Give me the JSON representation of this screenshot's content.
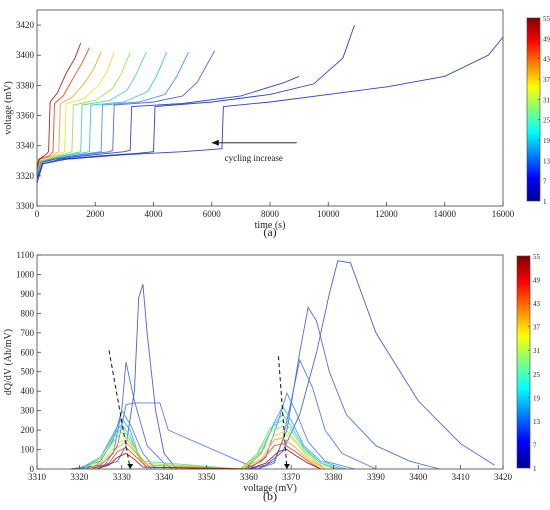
{
  "chart_data": [
    {
      "type": "line",
      "panel_label": "(a)",
      "xlabel": "time (s)",
      "ylabel": "voltage (mV)",
      "xlim": [
        0,
        16000
      ],
      "ylim": [
        3300,
        3430
      ],
      "xticks": [
        0,
        2000,
        4000,
        6000,
        8000,
        10000,
        12000,
        14000,
        16000
      ],
      "yticks": [
        3300,
        3320,
        3340,
        3360,
        3380,
        3400,
        3420
      ],
      "grid": false,
      "annotation": {
        "text": "cycling increase",
        "arrow": "left",
        "x": 6000,
        "y": 3330
      },
      "colorbar": {
        "ticks": [
          1,
          7,
          13,
          19,
          25,
          31,
          37,
          43,
          49,
          55
        ],
        "range": [
          1,
          55
        ]
      },
      "series": [
        {
          "cycle": 1,
          "color": "#1a2fb8",
          "x": [
            0,
            200,
            1000,
            3000,
            5000,
            6350,
            6400,
            8000,
            10000,
            12000,
            14000,
            15500,
            16000
          ],
          "y": [
            3315,
            3328,
            3331,
            3334,
            3336,
            3338,
            3366,
            3369,
            3374,
            3379,
            3386,
            3400,
            3412
          ]
        },
        {
          "cycle": 1,
          "color": "#1a2fb8",
          "x": [
            0,
            200,
            800,
            2000,
            3500,
            4000,
            4050,
            6000,
            8000,
            9500,
            10500,
            10900
          ],
          "y": [
            3318,
            3328,
            3331,
            3333,
            3335,
            3336,
            3366,
            3369,
            3374,
            3381,
            3398,
            3420
          ]
        },
        {
          "cycle": 4,
          "color": "#2035c8",
          "x": [
            0,
            200,
            600,
            1500,
            3000,
            3200,
            3250,
            5000,
            7000,
            8500,
            9000
          ],
          "y": [
            3318,
            3329,
            3331,
            3333,
            3336,
            3337,
            3366,
            3368,
            3373,
            3382,
            3386
          ]
        },
        {
          "cycle": 8,
          "color": "#3d5ae0",
          "x": [
            0,
            150,
            500,
            1200,
            2500,
            2600,
            2650,
            4000,
            5000,
            5500,
            6100
          ],
          "y": [
            3320,
            3329,
            3331,
            3333,
            3336,
            3337,
            3367,
            3369,
            3373,
            3382,
            3403
          ]
        },
        {
          "cycle": 12,
          "color": "#2b8ee8",
          "x": [
            0,
            150,
            500,
            1100,
            2200,
            2250,
            3500,
            4400,
            4800,
            5200
          ],
          "y": [
            3320,
            3330,
            3331,
            3333,
            3336,
            3367,
            3369,
            3374,
            3386,
            3402
          ]
        },
        {
          "cycle": 18,
          "color": "#28c0d8",
          "x": [
            0,
            120,
            400,
            900,
            1800,
            1850,
            3000,
            3800,
            4100,
            4450
          ],
          "y": [
            3321,
            3330,
            3331,
            3333,
            3336,
            3367,
            3369,
            3376,
            3386,
            3402
          ]
        },
        {
          "cycle": 25,
          "color": "#40d0a0",
          "x": [
            0,
            120,
            400,
            800,
            1500,
            1550,
            2500,
            3100,
            3400,
            3750
          ],
          "y": [
            3322,
            3330,
            3331,
            3333,
            3336,
            3367,
            3370,
            3377,
            3387,
            3402
          ]
        },
        {
          "cycle": 31,
          "color": "#90e040",
          "x": [
            0,
            100,
            300,
            700,
            1200,
            1250,
            2000,
            2600,
            2900,
            3200
          ],
          "y": [
            3322,
            3330,
            3331,
            3333,
            3336,
            3367,
            3370,
            3378,
            3388,
            3402
          ]
        },
        {
          "cycle": 37,
          "color": "#e8e020",
          "x": [
            0,
            100,
            300,
            600,
            950,
            1000,
            1600,
            2100,
            2400,
            2650
          ],
          "y": [
            3323,
            3331,
            3332,
            3333,
            3336,
            3368,
            3371,
            3380,
            3389,
            3402
          ]
        },
        {
          "cycle": 43,
          "color": "#f5a020",
          "x": [
            0,
            100,
            250,
            500,
            750,
            800,
            1200,
            1650,
            1950,
            2200
          ],
          "y": [
            3323,
            3331,
            3332,
            3333,
            3336,
            3368,
            3372,
            3382,
            3391,
            3402
          ]
        },
        {
          "cycle": 49,
          "color": "#ee3a1a",
          "x": [
            0,
            80,
            200,
            400,
            550,
            600,
            900,
            1250,
            1550,
            1800
          ],
          "y": [
            3324,
            3331,
            3332,
            3333,
            3336,
            3368,
            3373,
            3385,
            3395,
            3405
          ]
        },
        {
          "cycle": 55,
          "color": "#a01010",
          "x": [
            0,
            60,
            150,
            300,
            400,
            450,
            700,
            1000,
            1300,
            1500
          ],
          "y": [
            3325,
            3331,
            3332,
            3334,
            3336,
            3369,
            3375,
            3388,
            3398,
            3408
          ]
        }
      ]
    },
    {
      "type": "line",
      "panel_label": "(b)",
      "xlabel": "voltage (mV)",
      "ylabel": "dQ/dV (Ah/mV)",
      "xlim": [
        3310,
        3420
      ],
      "ylim": [
        0,
        1100
      ],
      "xticks": [
        3310,
        3320,
        3330,
        3340,
        3350,
        3360,
        3370,
        3380,
        3390,
        3400,
        3410,
        3420
      ],
      "yticks": [
        0,
        100,
        200,
        300,
        400,
        500,
        600,
        700,
        800,
        900,
        1000,
        1100
      ],
      "grid": false,
      "colorbar": {
        "ticks": [
          1,
          7,
          13,
          19,
          25,
          31,
          37,
          43,
          49,
          55
        ],
        "range": [
          1,
          55
        ]
      },
      "trend_lines": [
        {
          "x": [
            3327,
            3332
          ],
          "y": [
            610,
            0
          ]
        },
        {
          "x": [
            3367,
            3369
          ],
          "y": [
            580,
            0
          ]
        }
      ],
      "series": [
        {
          "cycle": 1,
          "color": "#3a52d0",
          "x": [
            3318,
            3325,
            3329,
            3331,
            3333,
            3334,
            3335,
            3336,
            3338,
            3340,
            3343,
            3360,
            3364,
            3368,
            3372,
            3376,
            3379,
            3381,
            3384,
            3390,
            3400,
            3410,
            3418
          ],
          "y": [
            0,
            10,
            40,
            120,
            400,
            880,
            950,
            700,
            300,
            80,
            0,
            0,
            20,
            90,
            280,
            600,
            900,
            1070,
            1060,
            700,
            350,
            130,
            20
          ]
        },
        {
          "cycle": 2,
          "color": "#4060d8",
          "x": [
            3318,
            3325,
            3328,
            3330,
            3331,
            3333,
            3336,
            3340,
            3342,
            3362,
            3366,
            3369,
            3372,
            3374,
            3376,
            3379,
            3383,
            3390,
            3398,
            3405
          ],
          "y": [
            0,
            20,
            80,
            300,
            550,
            350,
            120,
            30,
            0,
            0,
            40,
            200,
            600,
            830,
            760,
            500,
            280,
            120,
            40,
            0
          ]
        },
        {
          "cycle": 3,
          "color": "#4a6ae0",
          "x": [
            3318,
            3326,
            3329,
            3331,
            3333,
            3336,
            3339,
            3341,
            3362,
            3366,
            3368,
            3370,
            3372,
            3375,
            3378,
            3382,
            3390
          ],
          "y": [
            0,
            20,
            120,
            330,
            340,
            340,
            340,
            200,
            0,
            30,
            150,
            350,
            560,
            420,
            200,
            80,
            0
          ]
        },
        {
          "cycle": 8,
          "color": "#3b7ef0",
          "x": [
            3319,
            3325,
            3328,
            3330,
            3332,
            3335,
            3338,
            3360,
            3364,
            3367,
            3369,
            3371,
            3374,
            3378,
            3385
          ],
          "y": [
            0,
            40,
            150,
            300,
            230,
            80,
            0,
            0,
            60,
            250,
            390,
            300,
            140,
            40,
            0
          ]
        },
        {
          "cycle": 14,
          "color": "#2aa8e8",
          "x": [
            3320,
            3325,
            3328,
            3330,
            3332,
            3334,
            3337,
            3359,
            3363,
            3366,
            3368,
            3370,
            3373,
            3377,
            3383
          ],
          "y": [
            0,
            60,
            180,
            260,
            200,
            70,
            0,
            0,
            80,
            240,
            320,
            250,
            120,
            40,
            0
          ]
        },
        {
          "cycle": 20,
          "color": "#30c8c8",
          "x": [
            3320,
            3325,
            3328,
            3330,
            3332,
            3334,
            3336,
            3359,
            3363,
            3366,
            3368,
            3370,
            3373,
            3377,
            3382
          ],
          "y": [
            0,
            60,
            170,
            230,
            170,
            60,
            0,
            0,
            90,
            230,
            280,
            220,
            110,
            30,
            0
          ]
        },
        {
          "cycle": 26,
          "color": "#60d890",
          "x": [
            3321,
            3325,
            3328,
            3330,
            3332,
            3335,
            3358,
            3362,
            3365,
            3368,
            3370,
            3373,
            3377,
            3381
          ],
          "y": [
            0,
            60,
            160,
            210,
            150,
            40,
            0,
            80,
            210,
            250,
            200,
            100,
            30,
            0
          ]
        },
        {
          "cycle": 31,
          "color": "#a0e040",
          "x": [
            3321,
            3325,
            3328,
            3330,
            3332,
            3335,
            3358,
            3362,
            3365,
            3368,
            3370,
            3373,
            3377,
            3381
          ],
          "y": [
            0,
            50,
            140,
            190,
            130,
            30,
            0,
            70,
            190,
            220,
            170,
            90,
            20,
            0
          ]
        },
        {
          "cycle": 37,
          "color": "#e8d820",
          "x": [
            3322,
            3326,
            3329,
            3331,
            3333,
            3336,
            3358,
            3362,
            3366,
            3368,
            3371,
            3374,
            3378
          ],
          "y": [
            0,
            50,
            130,
            160,
            110,
            20,
            0,
            60,
            170,
            190,
            140,
            60,
            0
          ]
        },
        {
          "cycle": 43,
          "color": "#f0a020",
          "x": [
            3322,
            3326,
            3329,
            3331,
            3333,
            3336,
            3358,
            3363,
            3366,
            3368,
            3371,
            3374,
            3378
          ],
          "y": [
            0,
            40,
            110,
            140,
            90,
            20,
            0,
            50,
            150,
            160,
            110,
            50,
            0
          ]
        },
        {
          "cycle": 49,
          "color": "#e84020",
          "x": [
            3323,
            3327,
            3329,
            3331,
            3333,
            3336,
            3359,
            3363,
            3366,
            3368,
            3371,
            3374,
            3377
          ],
          "y": [
            0,
            30,
            90,
            110,
            70,
            10,
            0,
            40,
            120,
            130,
            90,
            40,
            0
          ]
        },
        {
          "cycle": 55,
          "color": "#a01010",
          "x": [
            3324,
            3327,
            3329,
            3331,
            3333,
            3335,
            3360,
            3364,
            3367,
            3369,
            3371,
            3374,
            3377
          ],
          "y": [
            0,
            20,
            60,
            80,
            50,
            10,
            0,
            30,
            90,
            100,
            70,
            30,
            0
          ]
        }
      ]
    }
  ]
}
